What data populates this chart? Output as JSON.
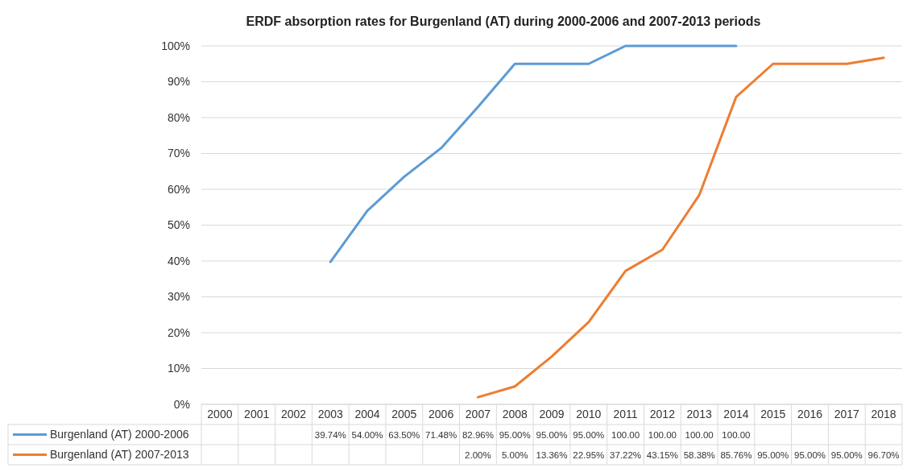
{
  "chart_data": {
    "type": "line",
    "title": "ERDF absorption rates for Burgenland (AT) during 2000-2006 and 2007-2013 periods",
    "categories": [
      "2000",
      "2001",
      "2002",
      "2003",
      "2004",
      "2005",
      "2006",
      "2007",
      "2008",
      "2009",
      "2010",
      "2011",
      "2012",
      "2013",
      "2014",
      "2015",
      "2016",
      "2017",
      "2018"
    ],
    "series": [
      {
        "name": "Burgenland (AT) 2000-2006",
        "color": "#5b9bd5",
        "values": [
          null,
          null,
          null,
          39.74,
          54.0,
          63.5,
          71.48,
          82.96,
          95.0,
          95.0,
          95.0,
          100.0,
          100.0,
          100.0,
          100.0,
          null,
          null,
          null,
          null
        ],
        "value_labels": [
          null,
          null,
          null,
          "39.74%",
          "54.00%",
          "63.50%",
          "71.48%",
          "82.96%",
          "95.00%",
          "95.00%",
          "95.00%",
          "100.00",
          "100.00",
          "100.00",
          "100.00",
          null,
          null,
          null,
          null
        ]
      },
      {
        "name": "Burgenland (AT) 2007-2013",
        "color": "#ed7d31",
        "values": [
          null,
          null,
          null,
          null,
          null,
          null,
          null,
          2.0,
          5.0,
          13.36,
          22.95,
          37.22,
          43.15,
          58.38,
          85.76,
          95.0,
          95.0,
          95.0,
          96.7
        ],
        "value_labels": [
          null,
          null,
          null,
          null,
          null,
          null,
          null,
          "2.00%",
          "5.00%",
          "13.36%",
          "22.95%",
          "37.22%",
          "43.15%",
          "58.38%",
          "85.76%",
          "95.00%",
          "95.00%",
          "95.00%",
          "96.70%"
        ]
      }
    ],
    "ylim": [
      0,
      100
    ],
    "yticks": [
      {
        "value": 0,
        "label": "0%"
      },
      {
        "value": 10,
        "label": "10%"
      },
      {
        "value": 20,
        "label": "20%"
      },
      {
        "value": 30,
        "label": "30%"
      },
      {
        "value": 40,
        "label": "40%"
      },
      {
        "value": 50,
        "label": "50%"
      },
      {
        "value": 60,
        "label": "60%"
      },
      {
        "value": 70,
        "label": "70%"
      },
      {
        "value": 80,
        "label": "80%"
      },
      {
        "value": 90,
        "label": "90%"
      },
      {
        "value": 100,
        "label": "100%"
      }
    ],
    "grid": "y",
    "legend": "bottom",
    "marker": "none",
    "line_style": "solid"
  }
}
